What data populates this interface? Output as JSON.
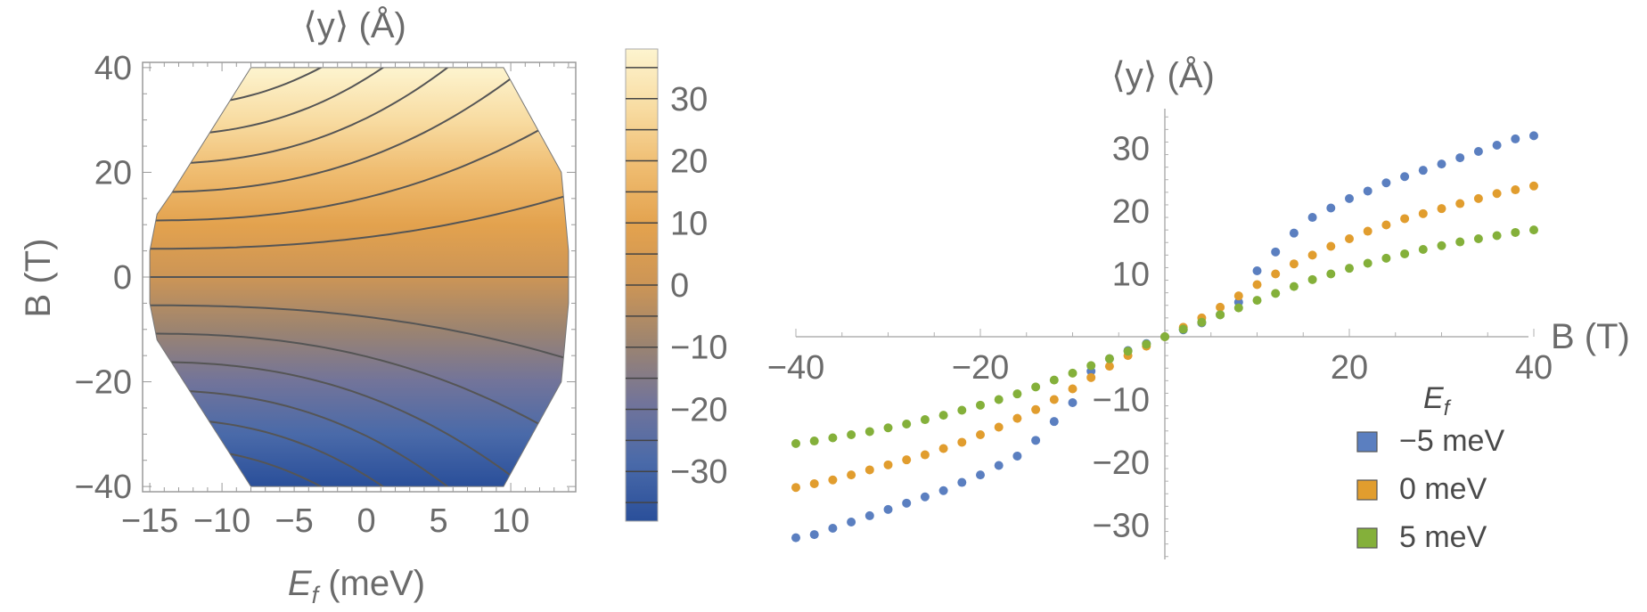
{
  "chart_data": [
    {
      "type": "heatmap",
      "subtype": "contour",
      "title": "⟨y⟩ (Å)",
      "xlabel": "E_f (meV)",
      "ylabel": "B (T)",
      "xlim": [
        -15.5,
        14.5
      ],
      "ylim": [
        -41,
        41
      ],
      "x_ticks": [
        -15,
        -10,
        -5,
        0,
        5,
        10
      ],
      "x_tick_labels": [
        "−15",
        "−10",
        "−5",
        "0",
        "5",
        "10"
      ],
      "y_ticks": [
        -40,
        -20,
        0,
        20,
        40
      ],
      "y_tick_labels": [
        "−40",
        "−20",
        "0",
        "20",
        "40"
      ],
      "region_outline": [
        [
          -8,
          40
        ],
        [
          9.5,
          40
        ],
        [
          13.5,
          20
        ],
        [
          14,
          5
        ],
        [
          14,
          -5
        ],
        [
          13.5,
          -20
        ],
        [
          9.5,
          -40
        ],
        [
          -8,
          -40
        ],
        [
          -14.5,
          -12
        ],
        [
          -15,
          -5
        ],
        [
          -15,
          5
        ],
        [
          -14.5,
          12
        ],
        [
          -13.5,
          16
        ]
      ],
      "contour_levels": [
        -35,
        -30,
        -25,
        -20,
        -15,
        -10,
        -5,
        0,
        5,
        10,
        15,
        20,
        25,
        30,
        35
      ],
      "color_range": [
        -38,
        38
      ],
      "colorbar": {
        "ticks": [
          30,
          20,
          10,
          0,
          -10,
          -20,
          -30
        ],
        "tick_labels": [
          "30",
          "20",
          "10",
          "0",
          "−10",
          "−20",
          "−30"
        ],
        "stops": [
          "#2a4f9a",
          "#4a6aa9",
          "#72749a",
          "#9c8470",
          "#cc9556",
          "#e3a24e",
          "#efbc70",
          "#f8dca2",
          "#fdf4cf"
        ]
      }
    },
    {
      "type": "scatter",
      "title": "⟨y⟩ (Å)",
      "xlabel": "B (T)",
      "xlim": [
        -40,
        40
      ],
      "ylim": [
        -35,
        35
      ],
      "x_ticks": [
        -40,
        -20,
        20,
        40
      ],
      "x_tick_labels": [
        "−40",
        "−20",
        "20",
        "40"
      ],
      "y_ticks": [
        -30,
        -20,
        -10,
        10,
        20,
        30
      ],
      "y_tick_labels": [
        "−30",
        "−20",
        "−10",
        "10",
        "20",
        "30"
      ],
      "legend_title": "E_f",
      "legend_position": "bottom-right",
      "x": [
        -40,
        -38,
        -36,
        -34,
        -32,
        -30,
        -28,
        -26,
        -24,
        -22,
        -20,
        -18,
        -16,
        -14,
        -12,
        -10,
        -8,
        -6,
        -4,
        -2,
        0,
        2,
        4,
        6,
        8,
        10,
        12,
        14,
        16,
        18,
        20,
        22,
        24,
        26,
        28,
        30,
        32,
        34,
        36,
        38,
        40
      ],
      "series": [
        {
          "name": "−5 meV",
          "color": "#5b7fc0",
          "values": [
            -32,
            -31.5,
            -30.5,
            -29.5,
            -28.5,
            -27.5,
            -26.5,
            -25.5,
            -24.5,
            -23.2,
            -22,
            -20.5,
            -19,
            -16.5,
            -13.5,
            -10.5,
            -5.5,
            -3.5,
            -2.2,
            -1.1,
            0,
            1.1,
            2.2,
            3.5,
            5.5,
            10.5,
            13.5,
            16.5,
            19,
            20.5,
            22,
            23.2,
            24.5,
            25.5,
            26.5,
            27.5,
            28.5,
            29.5,
            30.5,
            31.5,
            32
          ]
        },
        {
          "name": "0 meV",
          "color": "#e19d2e",
          "values": [
            -24,
            -23.4,
            -22.8,
            -22,
            -21.2,
            -20.4,
            -19.6,
            -18.8,
            -17.8,
            -16.8,
            -15.6,
            -14.4,
            -13,
            -11.6,
            -10,
            -8.3,
            -6.5,
            -4.7,
            -3,
            -1.5,
            0,
            1.5,
            3,
            4.7,
            6.5,
            8.3,
            10,
            11.6,
            13,
            14.4,
            15.6,
            16.8,
            17.8,
            18.8,
            19.6,
            20.4,
            21.2,
            22,
            22.8,
            23.4,
            24
          ]
        },
        {
          "name": "5 meV",
          "color": "#84b03a",
          "values": [
            -17,
            -16.6,
            -16.1,
            -15.6,
            -15.1,
            -14.5,
            -13.9,
            -13.2,
            -12.5,
            -11.7,
            -10.9,
            -10,
            -9.1,
            -8,
            -6.9,
            -5.8,
            -4.6,
            -3.5,
            -2.3,
            -1.2,
            0,
            1.2,
            2.3,
            3.5,
            4.6,
            5.8,
            6.9,
            8,
            9.1,
            10,
            10.9,
            11.7,
            12.5,
            13.2,
            13.9,
            14.5,
            15.1,
            15.6,
            16.1,
            16.6,
            17
          ]
        }
      ]
    }
  ]
}
